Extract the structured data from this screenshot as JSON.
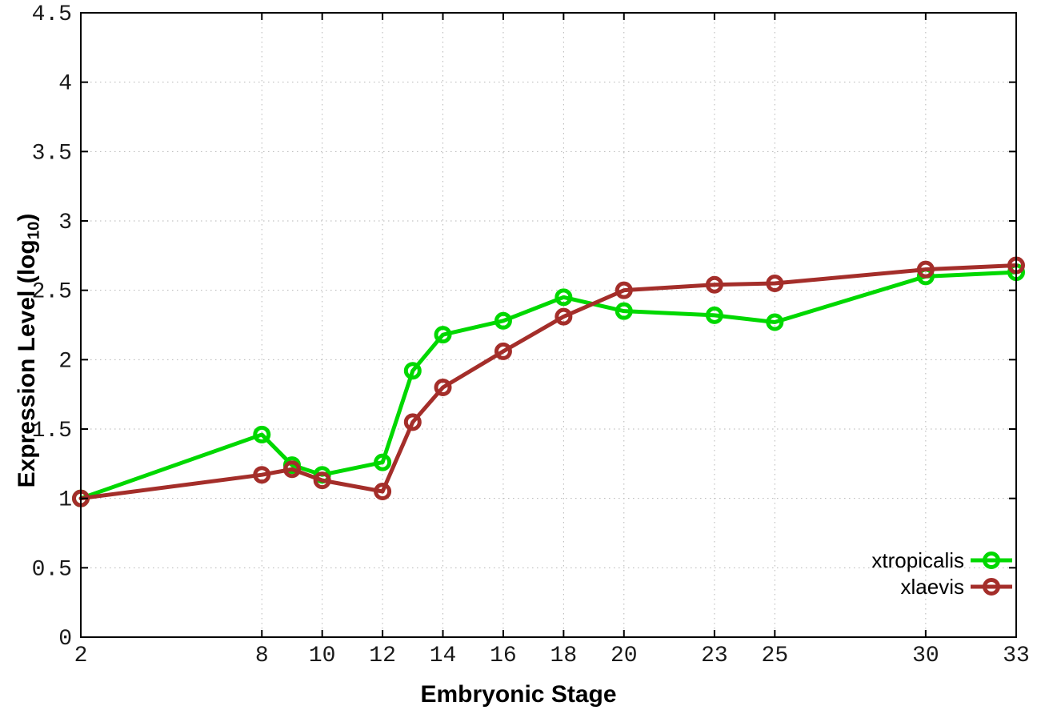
{
  "figure": {
    "background": "#ffffff",
    "x_axis_title": "Embryonic Stage",
    "y_axis_title_prefix": "Expression Level (log",
    "y_axis_title_subscript": "10",
    "y_axis_title_suffix": ")"
  },
  "chart_data": {
    "type": "line",
    "title": "",
    "xlabel": "Embryonic Stage",
    "ylabel": "Expression Level (log10)",
    "x": [
      2,
      8,
      9,
      10,
      12,
      13,
      14,
      16,
      18,
      20,
      23,
      25,
      30,
      33
    ],
    "series": [
      {
        "name": "xtropicalis",
        "color": "#00d800",
        "marker": "open-circle",
        "values": [
          1.0,
          1.46,
          1.24,
          1.17,
          1.26,
          1.92,
          2.18,
          2.28,
          2.45,
          2.35,
          2.32,
          2.27,
          2.6,
          2.63
        ]
      },
      {
        "name": "xlaevis",
        "color": "#a42e2a",
        "marker": "open-circle",
        "values": [
          1.0,
          1.17,
          1.21,
          1.13,
          1.05,
          1.55,
          1.8,
          2.06,
          2.31,
          2.5,
          2.54,
          2.55,
          2.65,
          2.68
        ]
      }
    ],
    "xlim": [
      2,
      33
    ],
    "ylim": [
      0,
      4.5
    ],
    "xticks": [
      2,
      8,
      10,
      12,
      14,
      16,
      18,
      20,
      23,
      25,
      30,
      33
    ],
    "yticks": [
      0,
      0.5,
      1,
      1.5,
      2,
      2.5,
      3,
      3.5,
      4,
      4.5
    ],
    "grid": true,
    "grid_style": "dotted",
    "grid_color": "#b5b5b5",
    "frame_color": "#000000",
    "tick_label_color": "#1a1a1a",
    "legend": {
      "position": "bottom-right-inside",
      "entries": [
        "xtropicalis",
        "xlaevis"
      ]
    }
  }
}
